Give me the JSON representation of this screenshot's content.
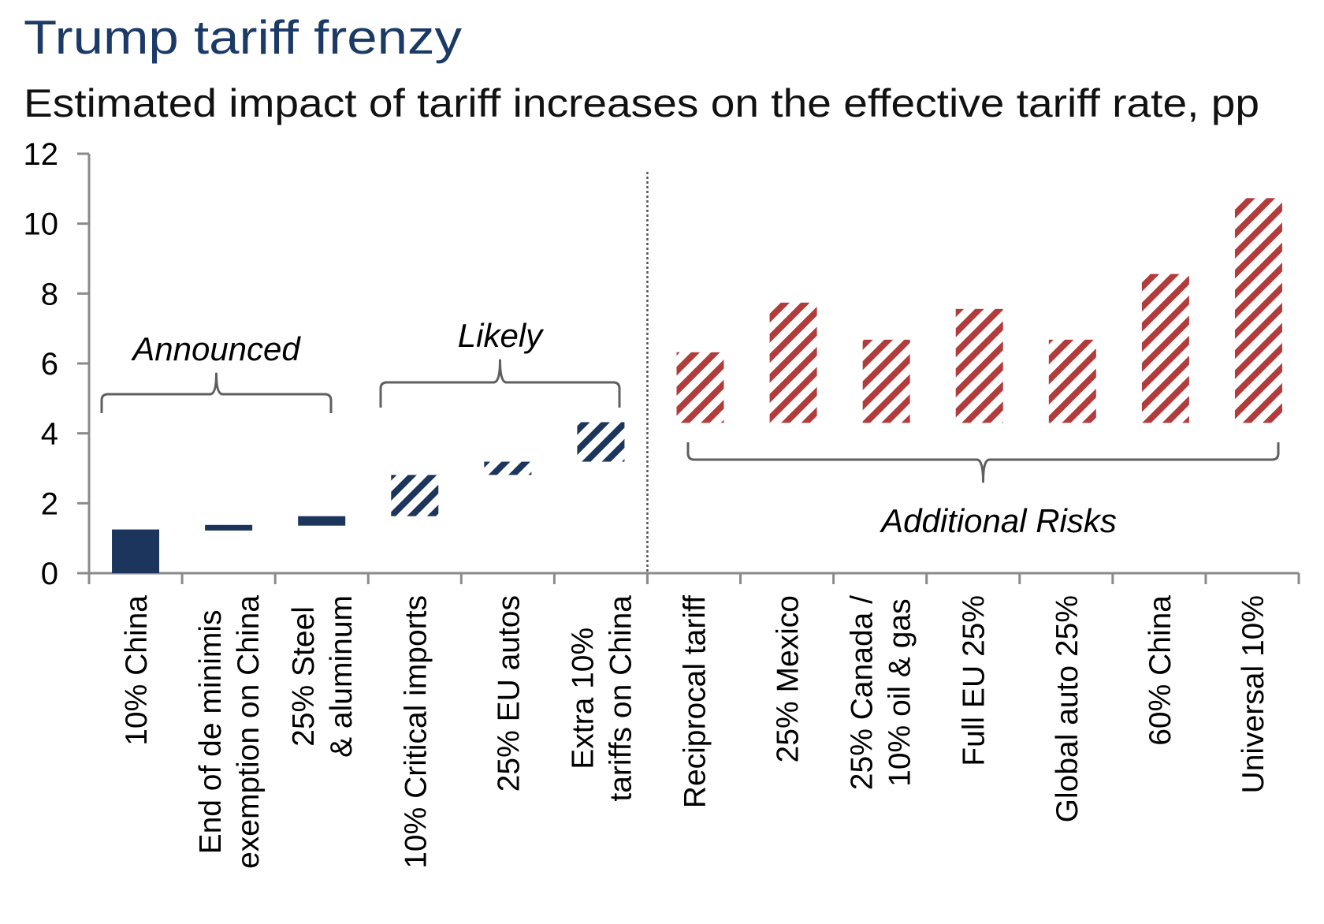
{
  "chart_data": {
    "type": "bar",
    "subtype": "waterfall",
    "title": "Trump tariff frenzy",
    "subtitle": "Estimated impact of tariff increases on the effective tariff rate, pp",
    "xlabel": "",
    "ylabel": "",
    "ylim": [
      0,
      12
    ],
    "yticks": [
      0,
      2,
      4,
      6,
      8,
      10,
      12
    ],
    "grid": false,
    "colors": {
      "announced": "#1b355c",
      "likely": "#1b355c",
      "additional_risks": "#b23b3b",
      "axis": "#8a8a8a",
      "title": "#1b3a66"
    },
    "categories": [
      "10% China",
      "End of de minimis exemption on China",
      "25% Steel & aluminum",
      "10% Critical imports",
      "25% EU autos",
      "Extra 10% tariffs on China",
      "Reciprocal tariff",
      "25% Mexico",
      "25% Canada / 10% oil & gas",
      "Full EU 25%",
      "Global auto 25%",
      "60% China",
      "Universal 10%"
    ],
    "category_lines": [
      [
        "10% China"
      ],
      [
        "End of de minimis",
        "exemption on China"
      ],
      [
        "25% Steel",
        "& aluminum"
      ],
      [
        "10% Critical imports"
      ],
      [
        "25% EU autos"
      ],
      [
        "Extra 10%",
        "tariffs on China"
      ],
      [
        "Reciprocal tariff"
      ],
      [
        "25% Mexico"
      ],
      [
        "25% Canada /",
        "10% oil & gas"
      ],
      [
        "Full EU 25%"
      ],
      [
        "Global auto 25%"
      ],
      [
        "60% China"
      ],
      [
        "Universal 10%"
      ]
    ],
    "series": [
      {
        "name": "Announced",
        "style": "solid",
        "points": [
          {
            "category": "10% China",
            "start": 0.0,
            "end": 1.25
          },
          {
            "category": "End of de minimis exemption on China",
            "start": 1.22,
            "end": 1.38
          },
          {
            "category": "25% Steel & aluminum",
            "start": 1.36,
            "end": 1.63
          }
        ]
      },
      {
        "name": "Likely",
        "style": "hatched",
        "points": [
          {
            "category": "10% Critical imports",
            "start": 1.63,
            "end": 2.81
          },
          {
            "category": "25% EU autos",
            "start": 2.81,
            "end": 3.19
          },
          {
            "category": "Extra 10% tariffs on China",
            "start": 3.19,
            "end": 4.32
          }
        ]
      },
      {
        "name": "Additional Risks",
        "style": "hatched",
        "points": [
          {
            "category": "Reciprocal tariff",
            "start": 4.3,
            "end": 6.32
          },
          {
            "category": "25% Mexico",
            "start": 4.3,
            "end": 7.74
          },
          {
            "category": "25% Canada / 10% oil & gas",
            "start": 4.3,
            "end": 6.68
          },
          {
            "category": "Full EU 25%",
            "start": 4.3,
            "end": 7.56
          },
          {
            "category": "Global auto 25%",
            "start": 4.3,
            "end": 6.68
          },
          {
            "category": "60% China",
            "start": 4.3,
            "end": 8.56
          },
          {
            "category": "Universal 10%",
            "start": 4.3,
            "end": 10.73
          }
        ]
      }
    ],
    "annotations": [
      {
        "text": "Announced",
        "spans": [
          "10% China",
          "25% Steel & aluminum"
        ],
        "position": "above",
        "brace": "opens-down"
      },
      {
        "text": "Likely",
        "spans": [
          "10% Critical imports",
          "Extra 10% tariffs on China"
        ],
        "position": "above",
        "brace": "opens-down"
      },
      {
        "text": "Additional Risks",
        "spans": [
          "Reciprocal tariff",
          "Universal 10%"
        ],
        "position": "below",
        "brace": "opens-up"
      }
    ],
    "divider": {
      "after_category": "Extra 10% tariffs on China",
      "style": "dotted"
    }
  }
}
